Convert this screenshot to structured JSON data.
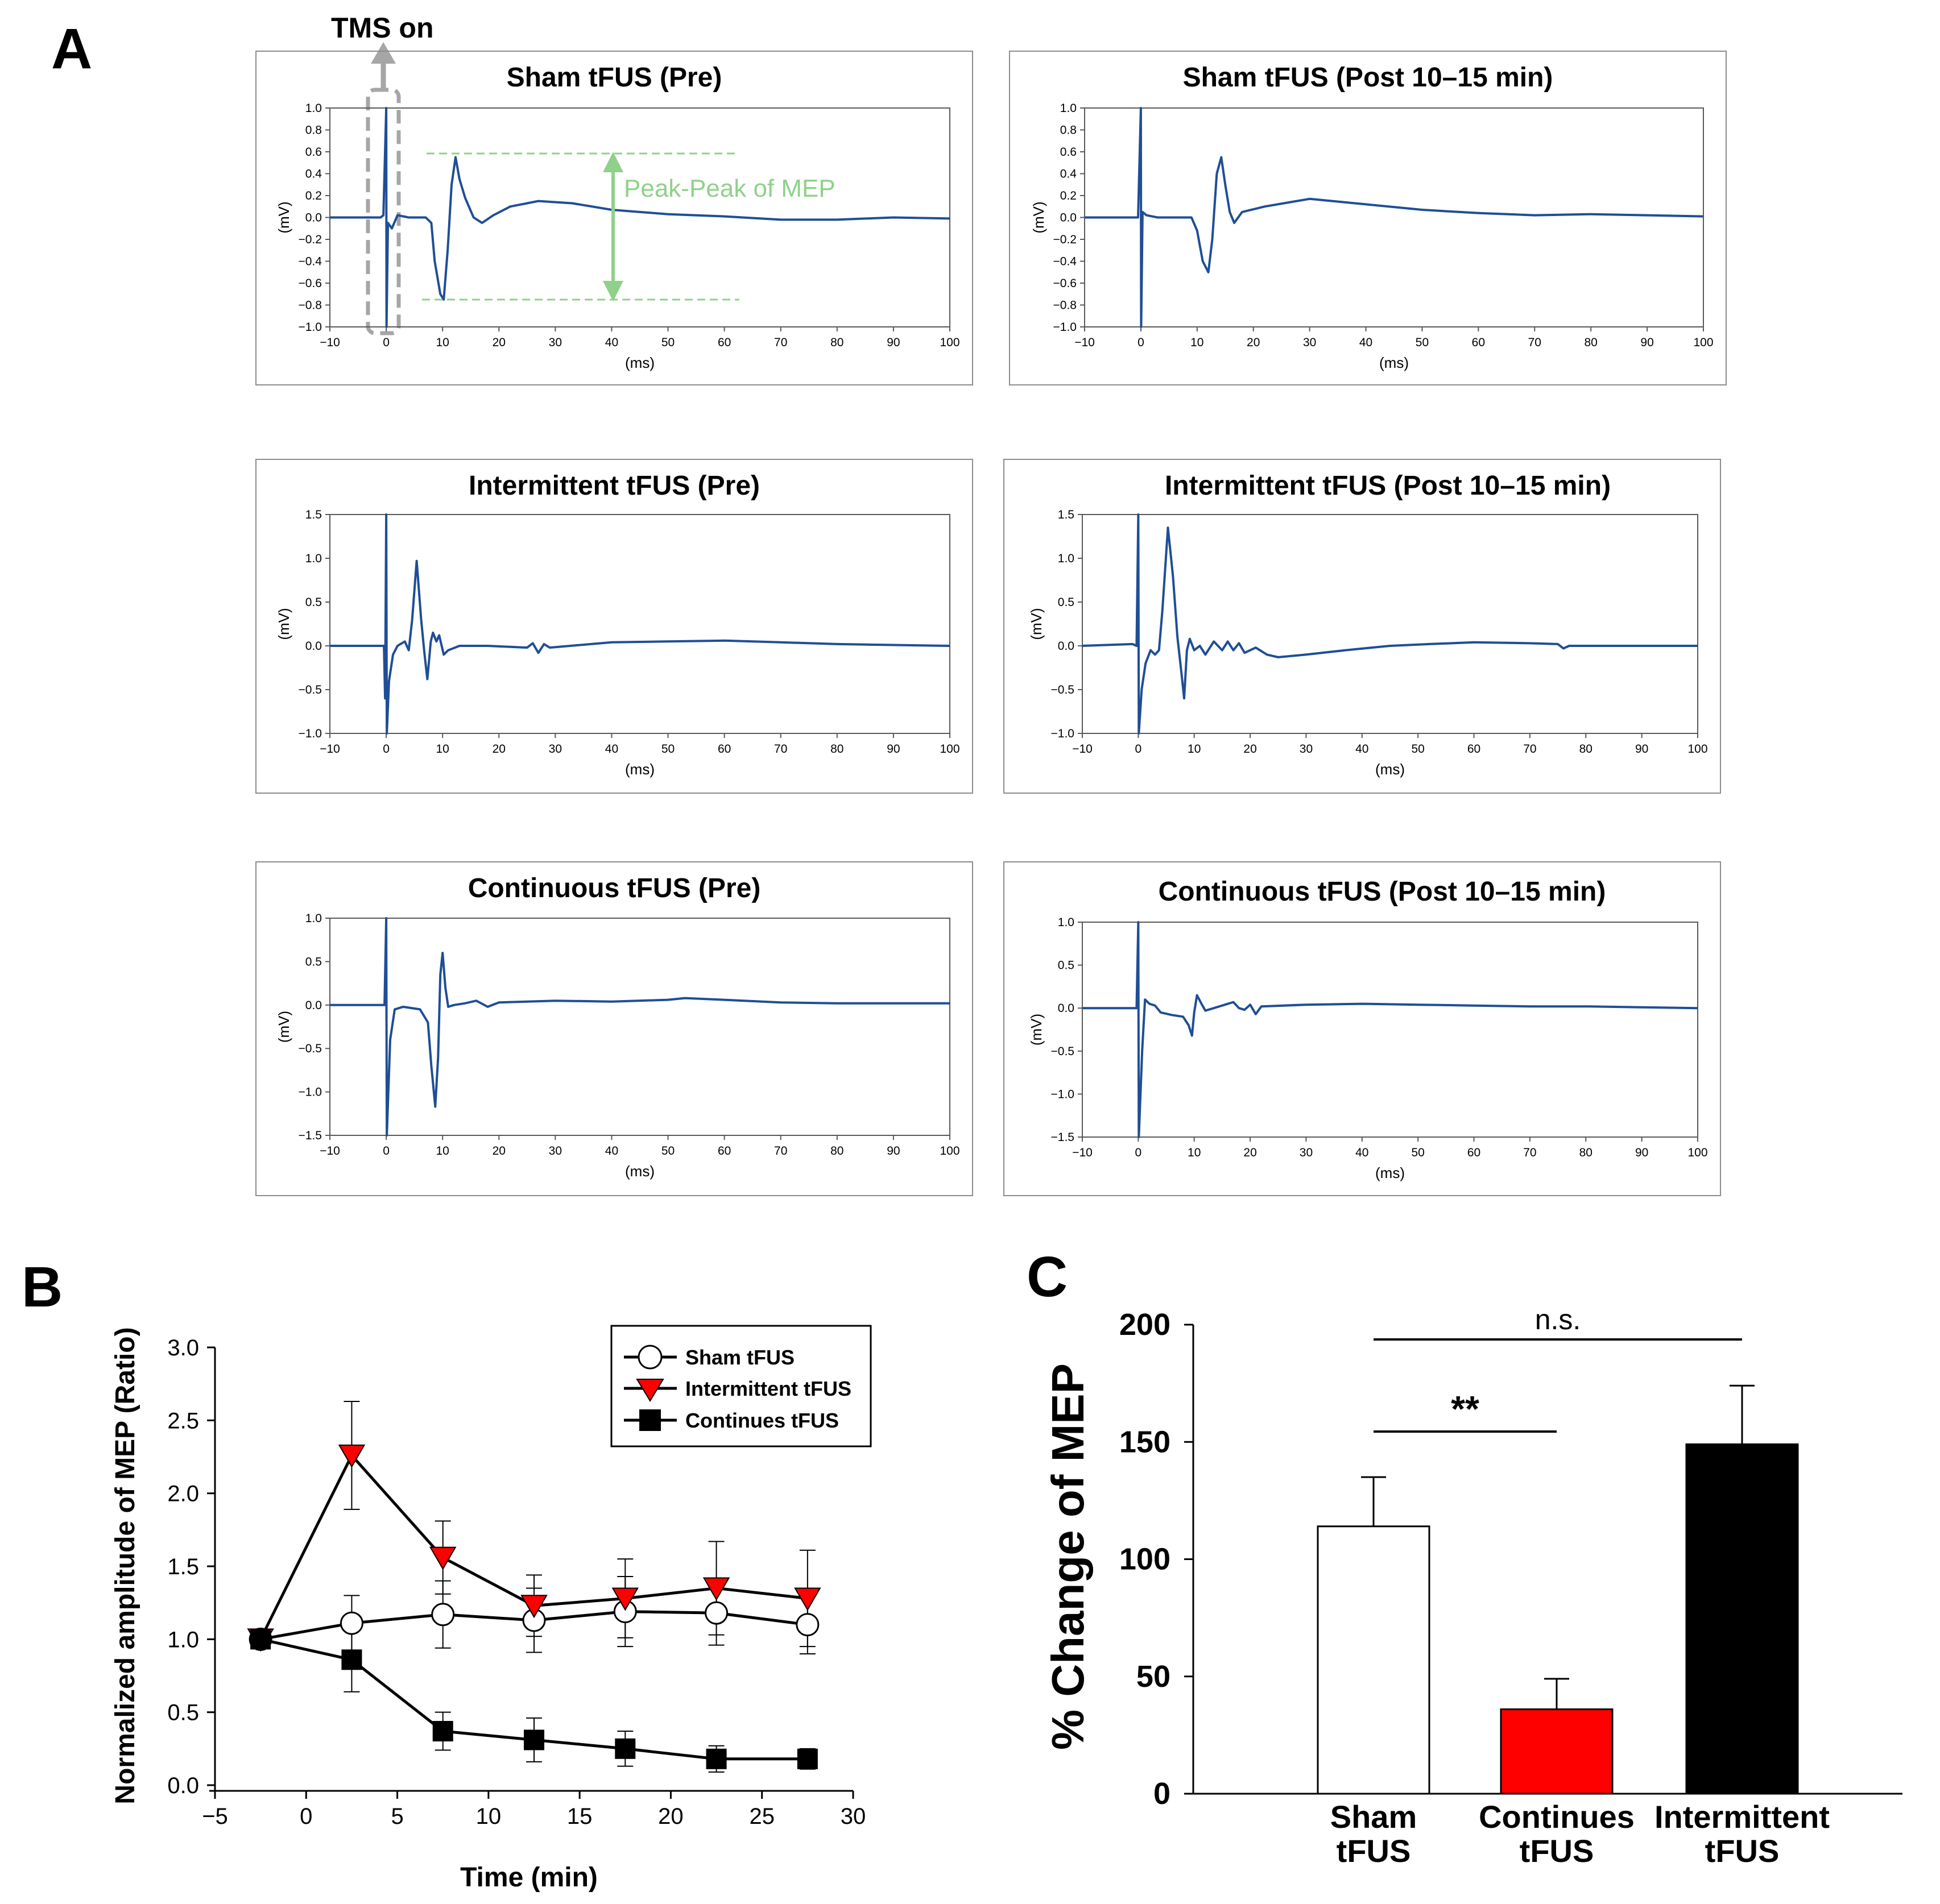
{
  "panels": {
    "A": "A",
    "B": "B",
    "C": "C"
  },
  "tms_label": "TMS on",
  "peak_label": "Peak-Peak of MEP",
  "colors": {
    "trace": "#1f4e96",
    "green": "#8fd18a",
    "gray": "#a6a6a6",
    "red": "#ff0000",
    "black": "#000000"
  },
  "chart_data": [
    {
      "id": "sham-pre",
      "type": "line",
      "title": "Sham tFUS  (Pre)",
      "xlabel": "(ms)",
      "ylabel": "(mV)",
      "xlim": [
        -10,
        100
      ],
      "ylim": [
        -1.0,
        1.0
      ],
      "xticks": [
        "−10",
        "0",
        "10",
        "20",
        "30",
        "40",
        "50",
        "60",
        "70",
        "80",
        "90",
        "100"
      ],
      "yticks": [
        "1.0",
        "0.8",
        "0.6",
        "0.4",
        "0.2",
        "0.0",
        "−0.2",
        "−0.4",
        "−0.6",
        "−0.8",
        "−1.0"
      ],
      "trace": [
        [
          -10,
          0
        ],
        [
          -1,
          0
        ],
        [
          -0.5,
          0.02
        ],
        [
          0,
          1.0
        ],
        [
          0.05,
          -1.0
        ],
        [
          0.3,
          -0.05
        ],
        [
          1,
          -0.1
        ],
        [
          2,
          0.02
        ],
        [
          4,
          0
        ],
        [
          7,
          0
        ],
        [
          8,
          -0.05
        ],
        [
          8.6,
          -0.4
        ],
        [
          9.6,
          -0.7
        ],
        [
          10.2,
          -0.75
        ],
        [
          10.9,
          -0.3
        ],
        [
          11.6,
          0.3
        ],
        [
          12.3,
          0.55
        ],
        [
          13,
          0.35
        ],
        [
          14,
          0.18
        ],
        [
          15.5,
          0.0
        ],
        [
          17,
          -0.05
        ],
        [
          19,
          0.02
        ],
        [
          22,
          0.1
        ],
        [
          27,
          0.15
        ],
        [
          33,
          0.13
        ],
        [
          40,
          0.07
        ],
        [
          50,
          0.03
        ],
        [
          60,
          0.01
        ],
        [
          70,
          -0.02
        ],
        [
          80,
          -0.02
        ],
        [
          90,
          0.0
        ],
        [
          100,
          -0.01
        ]
      ]
    },
    {
      "id": "sham-post",
      "type": "line",
      "title": "Sham tFUS (Post 10–15 min)",
      "xlabel": "(ms)",
      "ylabel": "(mV)",
      "xlim": [
        -10,
        100
      ],
      "ylim": [
        -1.0,
        1.0
      ],
      "xticks": [
        "−10",
        "0",
        "10",
        "20",
        "30",
        "40",
        "50",
        "60",
        "70",
        "80",
        "90",
        "100"
      ],
      "yticks": [
        "1.0",
        "0.8",
        "0.6",
        "0.4",
        "0.2",
        "0.0",
        "−0.2",
        "−0.4",
        "−0.6",
        "−0.8",
        "−1.0"
      ],
      "trace": [
        [
          -10,
          0
        ],
        [
          -0.5,
          0
        ],
        [
          0,
          1.0
        ],
        [
          0.05,
          -1.0
        ],
        [
          0.3,
          0.05
        ],
        [
          1,
          0.02
        ],
        [
          3,
          0
        ],
        [
          9,
          0
        ],
        [
          10,
          -0.12
        ],
        [
          11,
          -0.4
        ],
        [
          12,
          -0.5
        ],
        [
          12.7,
          -0.2
        ],
        [
          13.5,
          0.4
        ],
        [
          14.3,
          0.55
        ],
        [
          15,
          0.3
        ],
        [
          15.8,
          0.05
        ],
        [
          16.6,
          -0.05
        ],
        [
          18,
          0.05
        ],
        [
          22,
          0.1
        ],
        [
          30,
          0.17
        ],
        [
          40,
          0.12
        ],
        [
          50,
          0.07
        ],
        [
          60,
          0.04
        ],
        [
          70,
          0.02
        ],
        [
          80,
          0.03
        ],
        [
          90,
          0.02
        ],
        [
          100,
          0.01
        ]
      ]
    },
    {
      "id": "intermittent-pre",
      "type": "line",
      "title": "Intermittent tFUS (Pre)",
      "xlabel": "(ms)",
      "ylabel": "(mV)",
      "xlim": [
        -10,
        100
      ],
      "ylim": [
        -1.0,
        1.5
      ],
      "xticks": [
        "−10",
        "0",
        "10",
        "20",
        "30",
        "40",
        "50",
        "60",
        "70",
        "80",
        "90",
        "100"
      ],
      "yticks": [
        "1.5",
        "1.0",
        "0.5",
        "0.0",
        "−0.5",
        "−1.0"
      ],
      "trace": [
        [
          -10,
          0
        ],
        [
          -0.4,
          0
        ],
        [
          -0.2,
          -0.6
        ],
        [
          0,
          1.5
        ],
        [
          0.1,
          -1.0
        ],
        [
          0.5,
          -0.4
        ],
        [
          1.2,
          -0.1
        ],
        [
          2,
          0
        ],
        [
          3.3,
          0.05
        ],
        [
          4,
          -0.05
        ],
        [
          4.6,
          0.3
        ],
        [
          5.4,
          0.97
        ],
        [
          6.2,
          0.3
        ],
        [
          6.8,
          -0.1
        ],
        [
          7.3,
          -0.38
        ],
        [
          7.9,
          0.05
        ],
        [
          8.3,
          0.15
        ],
        [
          8.9,
          0.05
        ],
        [
          9.4,
          0.12
        ],
        [
          10.2,
          -0.1
        ],
        [
          11,
          -0.05
        ],
        [
          13,
          0.0
        ],
        [
          18,
          0.0
        ],
        [
          25,
          -0.02
        ],
        [
          26,
          0.03
        ],
        [
          27,
          -0.08
        ],
        [
          28,
          0.02
        ],
        [
          29,
          -0.02
        ],
        [
          40,
          0.04
        ],
        [
          50,
          0.05
        ],
        [
          60,
          0.06
        ],
        [
          70,
          0.04
        ],
        [
          80,
          0.02
        ],
        [
          90,
          0.01
        ],
        [
          100,
          0.0
        ]
      ]
    },
    {
      "id": "intermittent-post",
      "type": "line",
      "title": "Intermittent tFUS (Post 10–15 min)",
      "xlabel": "(ms)",
      "ylabel": "(mV)",
      "xlim": [
        -10,
        100
      ],
      "ylim": [
        -1.0,
        1.5
      ],
      "xticks": [
        "−10",
        "0",
        "10",
        "20",
        "30",
        "40",
        "50",
        "60",
        "70",
        "80",
        "90",
        "100"
      ],
      "yticks": [
        "1.5",
        "1.0",
        "0.5",
        "0.0",
        "−0.5",
        "−1.0"
      ],
      "trace": [
        [
          -10,
          0
        ],
        [
          -1,
          0.02
        ],
        [
          -0.3,
          0
        ],
        [
          0,
          1.5
        ],
        [
          0.1,
          -1.0
        ],
        [
          0.6,
          -0.5
        ],
        [
          1.3,
          -0.2
        ],
        [
          2.2,
          -0.05
        ],
        [
          3,
          -0.1
        ],
        [
          3.7,
          -0.05
        ],
        [
          4.3,
          0.4
        ],
        [
          5.3,
          1.35
        ],
        [
          6.2,
          0.8
        ],
        [
          7,
          0.1
        ],
        [
          7.7,
          -0.3
        ],
        [
          8.2,
          -0.6
        ],
        [
          8.7,
          -0.05
        ],
        [
          9.2,
          0.08
        ],
        [
          10,
          -0.05
        ],
        [
          11,
          0.0
        ],
        [
          12,
          -0.1
        ],
        [
          13.5,
          0.05
        ],
        [
          15,
          -0.05
        ],
        [
          16,
          0.05
        ],
        [
          17,
          -0.05
        ],
        [
          18,
          0.03
        ],
        [
          19,
          -0.08
        ],
        [
          21,
          -0.02
        ],
        [
          23,
          -0.1
        ],
        [
          25,
          -0.13
        ],
        [
          30,
          -0.1
        ],
        [
          37,
          -0.05
        ],
        [
          45,
          0.0
        ],
        [
          52,
          0.02
        ],
        [
          60,
          0.04
        ],
        [
          70,
          0.03
        ],
        [
          75,
          0.02
        ],
        [
          76,
          -0.03
        ],
        [
          77,
          0.0
        ],
        [
          85,
          0.0
        ],
        [
          95,
          0.0
        ],
        [
          100,
          0.0
        ]
      ]
    },
    {
      "id": "continuous-pre",
      "type": "line",
      "title": "Continuous tFUS (Pre)",
      "xlabel": "(ms)",
      "ylabel": "(mV)",
      "xlim": [
        -10,
        100
      ],
      "ylim": [
        -1.5,
        1.0
      ],
      "xticks": [
        "−10",
        "0",
        "10",
        "20",
        "30",
        "40",
        "50",
        "60",
        "70",
        "80",
        "90",
        "100"
      ],
      "yticks": [
        "1.0",
        "0.5",
        "0.0",
        "−0.5",
        "−1.0",
        "−1.5"
      ],
      "trace": [
        [
          -10,
          0
        ],
        [
          -0.3,
          0
        ],
        [
          0,
          1.0
        ],
        [
          0.1,
          -1.5
        ],
        [
          0.7,
          -0.4
        ],
        [
          1.5,
          -0.05
        ],
        [
          3,
          -0.02
        ],
        [
          6,
          -0.05
        ],
        [
          7.4,
          -0.2
        ],
        [
          8,
          -0.7
        ],
        [
          8.7,
          -1.17
        ],
        [
          9.2,
          -0.6
        ],
        [
          9.6,
          0.35
        ],
        [
          10,
          0.6
        ],
        [
          10.5,
          0.2
        ],
        [
          11,
          -0.02
        ],
        [
          12,
          0.0
        ],
        [
          14,
          0.02
        ],
        [
          16,
          0.05
        ],
        [
          18,
          -0.02
        ],
        [
          20,
          0.03
        ],
        [
          30,
          0.05
        ],
        [
          40,
          0.04
        ],
        [
          50,
          0.06
        ],
        [
          53,
          0.08
        ],
        [
          60,
          0.06
        ],
        [
          70,
          0.03
        ],
        [
          80,
          0.02
        ],
        [
          90,
          0.02
        ],
        [
          100,
          0.02
        ]
      ]
    },
    {
      "id": "continuous-post",
      "type": "line",
      "title": "Continuous tFUS (Post 10–15 min)",
      "xlabel": "(ms)",
      "ylabel": "(mV)",
      "xlim": [
        -10,
        100
      ],
      "ylim": [
        -1.5,
        1.0
      ],
      "xticks": [
        "−10",
        "0",
        "10",
        "20",
        "30",
        "40",
        "50",
        "60",
        "70",
        "80",
        "90",
        "100"
      ],
      "yticks": [
        "1.0",
        "0.5",
        "0.0",
        "−0.5",
        "−1.0",
        "−1.5"
      ],
      "trace": [
        [
          -10,
          0
        ],
        [
          -0.3,
          0
        ],
        [
          0,
          1.0
        ],
        [
          0.1,
          -1.5
        ],
        [
          0.7,
          -0.5
        ],
        [
          1.2,
          0.1
        ],
        [
          2,
          0.05
        ],
        [
          3,
          0.03
        ],
        [
          4,
          -0.05
        ],
        [
          6,
          -0.08
        ],
        [
          8,
          -0.1
        ],
        [
          9,
          -0.2
        ],
        [
          9.6,
          -0.32
        ],
        [
          10,
          -0.05
        ],
        [
          10.5,
          0.15
        ],
        [
          11.3,
          0.05
        ],
        [
          12,
          -0.03
        ],
        [
          15,
          0.03
        ],
        [
          17,
          0.07
        ],
        [
          18,
          0.0
        ],
        [
          19,
          -0.02
        ],
        [
          20,
          0.04
        ],
        [
          21,
          -0.07
        ],
        [
          22,
          0.02
        ],
        [
          30,
          0.04
        ],
        [
          40,
          0.05
        ],
        [
          50,
          0.04
        ],
        [
          60,
          0.03
        ],
        [
          70,
          0.02
        ],
        [
          80,
          0.02
        ],
        [
          90,
          0.01
        ],
        [
          100,
          0.0
        ]
      ]
    },
    {
      "id": "timecourse",
      "type": "line",
      "xlabel": "Time (min)",
      "ylabel": "Normalized amplitude of MEP (Ratio)",
      "xlim": [
        -5,
        30
      ],
      "ylim": [
        0,
        3.0
      ],
      "xticks": [
        "−5",
        "0",
        "5",
        "10",
        "15",
        "20",
        "25",
        "30"
      ],
      "yticks": [
        "3.0",
        "2.5",
        "2.0",
        "1.5",
        "1.0",
        "0.5",
        "0.0"
      ],
      "x": [
        -2.5,
        2.5,
        7.5,
        12.5,
        17.5,
        22.5,
        27.5
      ],
      "series": [
        {
          "name": "Sham tFUS",
          "marker": "circle",
          "values": [
            1.0,
            1.11,
            1.17,
            1.13,
            1.19,
            1.18,
            1.1
          ],
          "errors": [
            0.0,
            0.19,
            0.23,
            0.22,
            0.24,
            0.22,
            0.2
          ]
        },
        {
          "name": "Intermittent tFUS",
          "marker": "triangle",
          "values": [
            1.0,
            2.26,
            1.56,
            1.23,
            1.28,
            1.35,
            1.28
          ],
          "errors": [
            0.0,
            0.37,
            0.25,
            0.21,
            0.27,
            0.32,
            0.33
          ]
        },
        {
          "name": "Continues tFUS",
          "marker": "square",
          "values": [
            1.0,
            0.86,
            0.37,
            0.31,
            0.25,
            0.18,
            0.18
          ],
          "errors": [
            0.0,
            0.22,
            0.13,
            0.15,
            0.12,
            0.09,
            0.07
          ]
        }
      ]
    },
    {
      "id": "bars",
      "type": "bar",
      "ylabel": "% Change of MEP",
      "ylim": [
        0,
        200
      ],
      "yticks": [
        "200",
        "150",
        "100",
        "50",
        "0"
      ],
      "categories": [
        [
          "Sham",
          "tFUS"
        ],
        [
          "Continues",
          "tFUS"
        ],
        [
          "Intermittent",
          "tFUS"
        ]
      ],
      "values": [
        114,
        36,
        149
      ],
      "errors": [
        21,
        13,
        25
      ],
      "significance": [
        {
          "label": "**",
          "from": 0,
          "to": 1
        },
        {
          "label": "n.s.",
          "from": 0,
          "to": 2
        }
      ]
    }
  ]
}
